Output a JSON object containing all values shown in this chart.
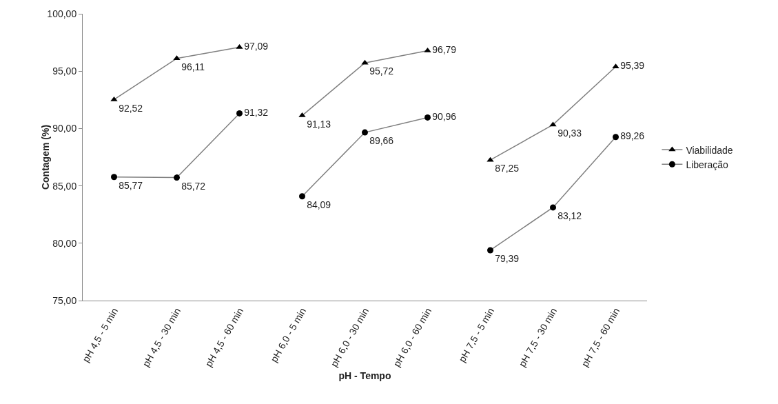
{
  "chart_data": {
    "type": "line",
    "xlabel": "pH - Tempo",
    "ylabel": "Contagem (%)",
    "categories": [
      "pH 4,5 - 5 min",
      "pH 4,5 - 30 min",
      "pH 4,5 - 60 min",
      "pH 6,0 - 5 min",
      "pH 6,0 - 30 min",
      "pH 6,0 - 60 min",
      "pH 7,5 - 5 min",
      "pH 7,5 - 30 min",
      "pH 7,5 - 60 min"
    ],
    "series": [
      {
        "name": "Viabilidade",
        "color": "#000000",
        "marker": "triangle",
        "values": [
          92.52,
          96.11,
          97.09,
          91.13,
          95.72,
          96.79,
          87.25,
          90.33,
          95.39
        ],
        "value_labels": [
          "92,52",
          "96,11",
          "97,09",
          "91,13",
          "95,72",
          "96,79",
          "87,25",
          "90,33",
          "95,39"
        ]
      },
      {
        "name": "Liberação",
        "color": "#000000",
        "marker": "circle",
        "values": [
          85.77,
          85.72,
          91.32,
          84.09,
          89.66,
          90.96,
          79.39,
          83.12,
          89.26
        ],
        "value_labels": [
          "85,77",
          "85,72",
          "91,32",
          "84,09",
          "89,66",
          "90,96",
          "79,39",
          "83,12",
          "89,26"
        ]
      }
    ],
    "ylim": [
      75,
      100
    ],
    "yticks": [
      {
        "value": 75,
        "label": "75,00"
      },
      {
        "value": 80,
        "label": "80,00"
      },
      {
        "value": 85,
        "label": "85,00"
      },
      {
        "value": 90,
        "label": "90,00"
      },
      {
        "value": 95,
        "label": "95,00"
      },
      {
        "value": 100,
        "label": "100,00"
      }
    ],
    "grid": false,
    "legend": "right",
    "line_style": "solid"
  }
}
